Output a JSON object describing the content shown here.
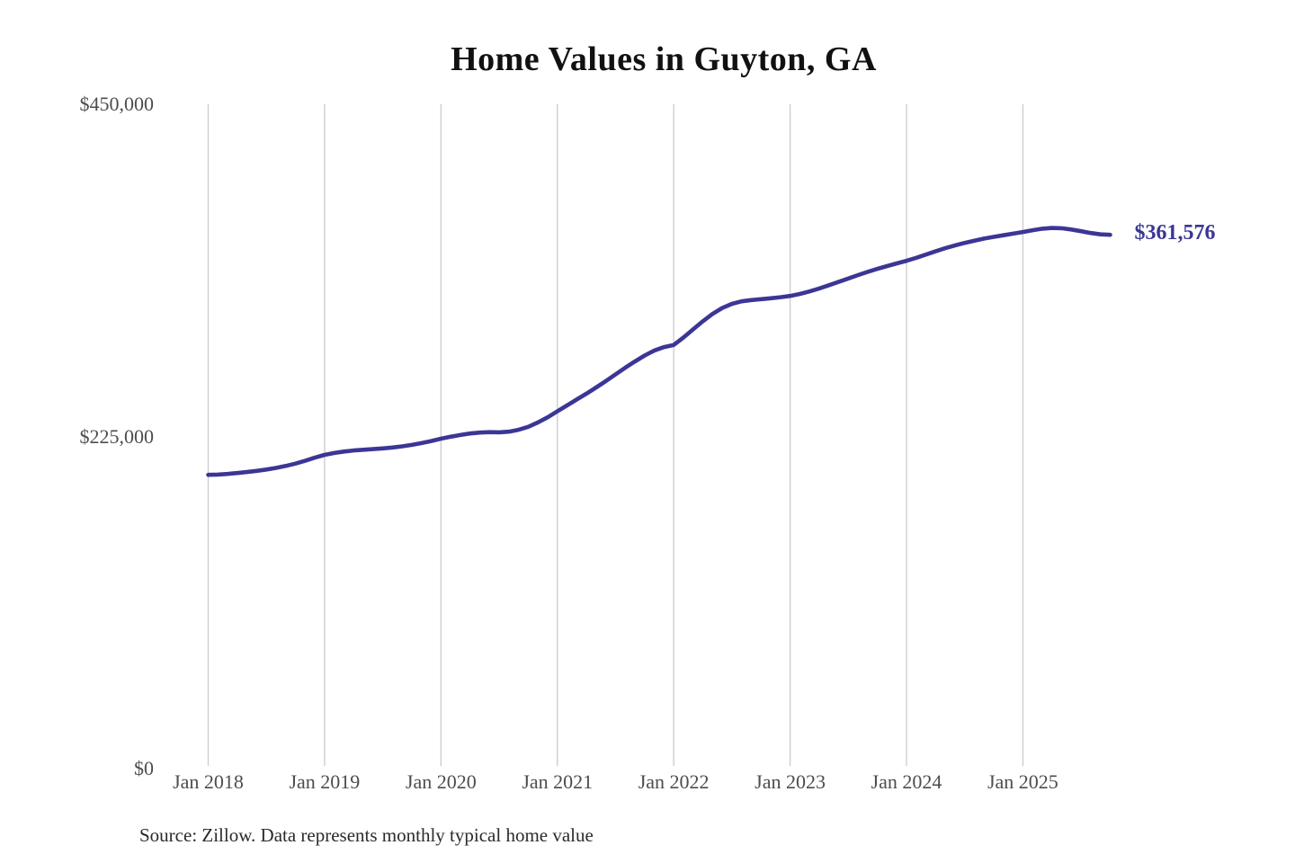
{
  "page": {
    "title": "Home Values in Guyton, GA",
    "source_note": "Source: Zillow. Data represents monthly typical home value",
    "end_value_label": "$361,576"
  },
  "colors": {
    "line": "#3b3696",
    "end_label": "#3b3696",
    "gridline": "#cbcbcb",
    "axis_text": "#4d4d4d",
    "title_text": "#111111",
    "source_text": "#2b2b2b",
    "background": "#ffffff"
  },
  "chart_data": {
    "type": "line",
    "title": "Home Values in Guyton, GA",
    "xlabel": "",
    "ylabel": "",
    "grid": "vertical-only",
    "legend": "none",
    "y_axis_range": [
      0,
      450000
    ],
    "y_ticks": [
      {
        "label": "$0",
        "value": 0
      },
      {
        "label": "$225,000",
        "value": 225000
      },
      {
        "label": "$450,000",
        "value": 450000
      }
    ],
    "x_tick_labels": [
      "Jan 2018",
      "Jan 2019",
      "Jan 2020",
      "Jan 2021",
      "Jan 2022",
      "Jan 2023",
      "Jan 2024",
      "Jan 2025"
    ],
    "frequency": "monthly",
    "x_start": "2018-01",
    "x_end": "2025-10",
    "final_value": 361576,
    "final_value_label": "$361,576",
    "series": [
      {
        "name": "Typical home value",
        "values": [
          199000,
          199200,
          199600,
          200200,
          200900,
          201700,
          202600,
          203700,
          205000,
          206600,
          208500,
          210600,
          212500,
          213800,
          214800,
          215500,
          216000,
          216400,
          216900,
          217500,
          218300,
          219300,
          220500,
          221900,
          223500,
          224800,
          226000,
          227000,
          227600,
          227900,
          227800,
          228200,
          229500,
          231500,
          234500,
          238000,
          242000,
          246000,
          250000,
          254000,
          258200,
          262500,
          267000,
          271500,
          275800,
          279800,
          283200,
          285500,
          287000,
          292000,
          297500,
          303000,
          308000,
          312000,
          314800,
          316500,
          317400,
          318000,
          318600,
          319300,
          320200,
          321500,
          323200,
          325200,
          327400,
          329700,
          332000,
          334300,
          336500,
          338500,
          340400,
          342200,
          344000,
          346000,
          348200,
          350400,
          352500,
          354400,
          356100,
          357600,
          359000,
          360200,
          361300,
          362400,
          363500,
          364700,
          365700,
          366200,
          366000,
          365200,
          364000,
          362800,
          361900,
          361576
        ]
      }
    ]
  }
}
